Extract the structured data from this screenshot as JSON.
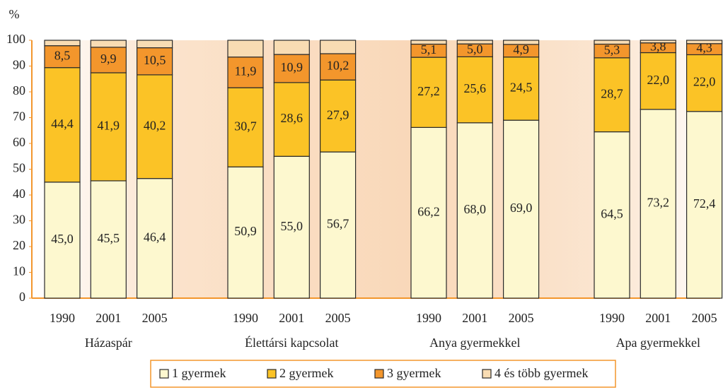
{
  "chart_data": {
    "type": "stacked_bar",
    "y_axis_label": "%",
    "groups": [
      "Házaspár",
      "Élettársi kapcsolat",
      "Anya gyermekkel",
      "Apa gyermekkel"
    ],
    "categories": [
      "1990",
      "2001",
      "2005",
      "1990",
      "2001",
      "2005",
      "1990",
      "2001",
      "2005",
      "1990",
      "2001",
      "2005"
    ],
    "series": [
      {
        "name": "1 gyermek",
        "color": "#fdf8cf",
        "values": [
          45.0,
          45.5,
          46.4,
          50.9,
          55.0,
          56.7,
          66.2,
          68.0,
          69.0,
          64.5,
          73.2,
          72.4
        ],
        "value_labels": [
          "45,0",
          "45,5",
          "46,4",
          "50,9",
          "55,0",
          "56,7",
          "66,2",
          "68,0",
          "69,0",
          "64,5",
          "73,2",
          "72,4"
        ]
      },
      {
        "name": "2 gyermek",
        "color": "#fbc326",
        "values": [
          44.4,
          41.9,
          40.2,
          30.7,
          28.6,
          27.9,
          27.2,
          25.6,
          24.5,
          28.7,
          22.0,
          22.0
        ],
        "value_labels": [
          "44,4",
          "41,9",
          "40,2",
          "30,7",
          "28,6",
          "27,9",
          "27,2",
          "25,6",
          "24,5",
          "28,7",
          "22,0",
          "22,0"
        ]
      },
      {
        "name": "3 gyermek",
        "color": "#f3962c",
        "values": [
          8.5,
          9.9,
          10.5,
          11.9,
          10.9,
          10.2,
          5.1,
          5.0,
          4.9,
          5.3,
          3.8,
          4.3
        ],
        "value_labels": [
          "8,5",
          "9,9",
          "10,5",
          "11,9",
          "10,9",
          "10,2",
          "5,1",
          "5,0",
          "4,9",
          "5,3",
          "3,8",
          "4,3"
        ]
      },
      {
        "name": "4 és több gyermek",
        "color": "#f8dcb3",
        "values": [
          2.1,
          2.7,
          2.9,
          6.5,
          5.5,
          5.2,
          1.5,
          1.4,
          1.6,
          1.5,
          1.0,
          1.3
        ]
      }
    ],
    "ylim": [
      0,
      100
    ],
    "yticks": [
      0,
      10,
      20,
      30,
      40,
      50,
      60,
      70,
      80,
      90,
      100
    ]
  }
}
